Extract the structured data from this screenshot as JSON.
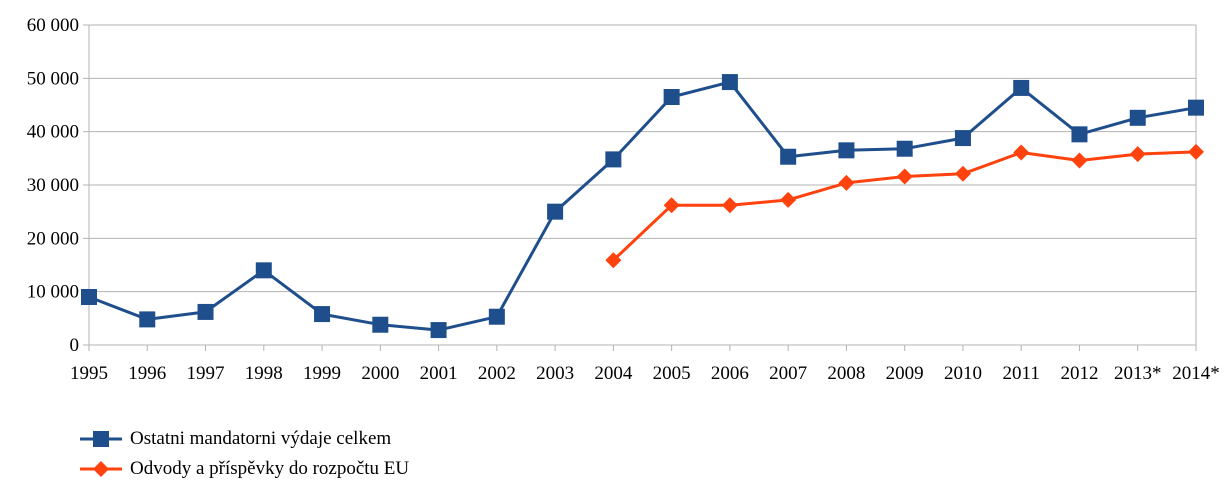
{
  "chart_data": {
    "type": "line",
    "title": "",
    "xlabel": "",
    "ylabel": "",
    "categories": [
      "1995",
      "1996",
      "1997",
      "1998",
      "1999",
      "2000",
      "2001",
      "2002",
      "2003",
      "2004",
      "2005",
      "2006",
      "2007",
      "2008",
      "2009",
      "2010",
      "2011",
      "2012",
      "2013*",
      "2014*"
    ],
    "ylim": [
      0,
      60000
    ],
    "yticks": [
      0,
      10000,
      20000,
      30000,
      40000,
      50000,
      60000
    ],
    "ytick_labels": [
      "0",
      "10 000",
      "20 000",
      "30 000",
      "40 000",
      "50 000",
      "60 000"
    ],
    "grid": true,
    "legend_position": "bottom-left",
    "series": [
      {
        "name": "Ostatni mandatorni výdaje celkem",
        "color": "#1f4e8c",
        "marker": "square",
        "values": [
          9000,
          4800,
          6200,
          14000,
          5800,
          3800,
          2800,
          5300,
          25000,
          34800,
          46500,
          49300,
          35300,
          36500,
          36800,
          38800,
          48200,
          39500,
          42600,
          44500
        ]
      },
      {
        "name": "Odvody a příspěvky do rozpočtu EU",
        "color": "#ff420e",
        "marker": "diamond",
        "values": [
          null,
          null,
          null,
          null,
          null,
          null,
          null,
          null,
          null,
          15900,
          26200,
          26200,
          27200,
          30400,
          31600,
          32100,
          36100,
          34600,
          35800,
          36200
        ]
      }
    ]
  }
}
